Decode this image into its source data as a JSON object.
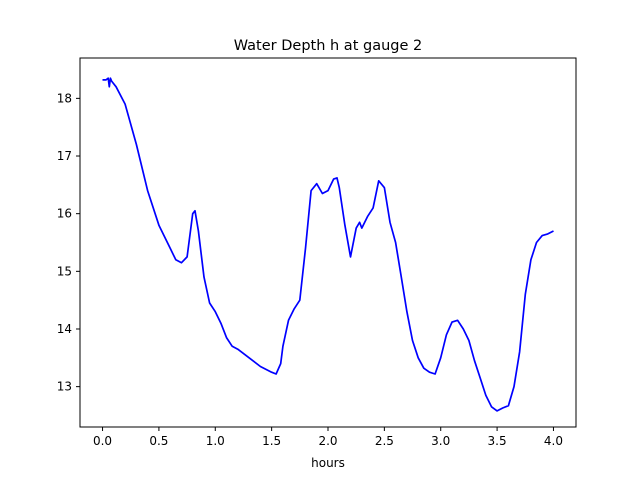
{
  "chart_data": {
    "type": "line",
    "title": "Water Depth h at gauge 2",
    "xlabel": "hours",
    "ylabel": "",
    "xlim": [
      -0.2,
      4.2
    ],
    "ylim": [
      12.3,
      18.7
    ],
    "xticks": [
      "0.0",
      "0.5",
      "1.0",
      "1.5",
      "2.0",
      "2.5",
      "3.0",
      "3.5",
      "4.0"
    ],
    "yticks": [
      "13",
      "14",
      "15",
      "16",
      "17",
      "18"
    ],
    "grid": false,
    "legend": "none",
    "colors": {
      "line": "#0000ff"
    },
    "series": [
      {
        "x": [
          0.0,
          0.03,
          0.05,
          0.06,
          0.07,
          0.08,
          0.12,
          0.2,
          0.3,
          0.4,
          0.5,
          0.6,
          0.65,
          0.7,
          0.75,
          0.8,
          0.82,
          0.85,
          0.9,
          0.95,
          1.0,
          1.05,
          1.1,
          1.15,
          1.2,
          1.3,
          1.4,
          1.5,
          1.54,
          1.58,
          1.6,
          1.65,
          1.7,
          1.75,
          1.8,
          1.85,
          1.9,
          1.95,
          2.0,
          2.05,
          2.08,
          2.1,
          2.15,
          2.2,
          2.25,
          2.28,
          2.3,
          2.35,
          2.4,
          2.45,
          2.5,
          2.55,
          2.6,
          2.65,
          2.7,
          2.75,
          2.8,
          2.85,
          2.9,
          2.95,
          3.0,
          3.05,
          3.1,
          3.15,
          3.2,
          3.25,
          3.3,
          3.35,
          3.4,
          3.45,
          3.5,
          3.55,
          3.6,
          3.65,
          3.7,
          3.75,
          3.8,
          3.85,
          3.9,
          3.95,
          4.0
        ],
        "y": [
          18.32,
          18.32,
          18.35,
          18.2,
          18.35,
          18.3,
          18.2,
          17.9,
          17.2,
          16.4,
          15.8,
          15.4,
          15.2,
          15.15,
          15.25,
          16.0,
          16.05,
          15.7,
          14.9,
          14.45,
          14.3,
          14.1,
          13.85,
          13.7,
          13.65,
          13.5,
          13.35,
          13.25,
          13.22,
          13.4,
          13.7,
          14.15,
          14.35,
          14.5,
          15.4,
          16.4,
          16.52,
          16.35,
          16.4,
          16.6,
          16.62,
          16.45,
          15.8,
          15.25,
          15.75,
          15.85,
          15.75,
          15.95,
          16.1,
          16.57,
          16.45,
          15.85,
          15.5,
          14.9,
          14.3,
          13.8,
          13.5,
          13.32,
          13.25,
          13.22,
          13.5,
          13.9,
          14.12,
          14.15,
          14.0,
          13.8,
          13.45,
          13.15,
          12.85,
          12.65,
          12.58,
          12.63,
          12.67,
          13.0,
          13.6,
          14.6,
          15.2,
          15.5,
          15.62,
          15.65,
          15.7
        ]
      }
    ]
  }
}
